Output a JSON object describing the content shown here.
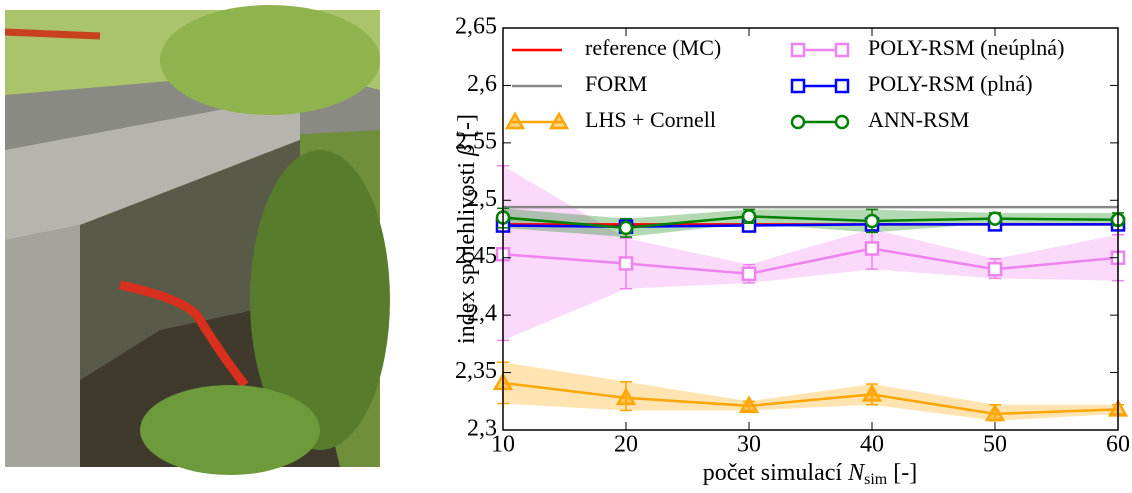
{
  "chart_data": {
    "type": "line",
    "x_label": {
      "text": "počet simulací ",
      "var": "N",
      "sub": "sim",
      "unit": " [-]"
    },
    "y_label": {
      "text": "index spolehlivosti ",
      "var": "β",
      "unit": " [-]"
    },
    "x": [
      10,
      20,
      30,
      40,
      50,
      60
    ],
    "xlim": [
      10,
      60
    ],
    "xticks": [
      10,
      20,
      30,
      40,
      50,
      60
    ],
    "ylim": [
      2.3,
      2.65
    ],
    "yticks": [
      {
        "value": 2.3,
        "label": "2,3"
      },
      {
        "value": 2.35,
        "label": "2,35"
      },
      {
        "value": 2.4,
        "label": "2,4"
      },
      {
        "value": 2.45,
        "label": "2,45"
      },
      {
        "value": 2.5,
        "label": "2,5"
      },
      {
        "value": 2.55,
        "label": "2,55"
      },
      {
        "value": 2.6,
        "label": "2,6"
      },
      {
        "value": 2.65,
        "label": "2,65"
      }
    ],
    "legend": {
      "loc": "upper",
      "ncol": 2
    },
    "series": [
      {
        "name": "reference (MC)",
        "color": "#ff0000",
        "values": [
          2.479,
          2.479,
          2.479,
          2.479,
          2.479,
          2.479
        ]
      },
      {
        "name": "FORM",
        "color": "#888888",
        "values": [
          2.494,
          2.494,
          2.494,
          2.494,
          2.494,
          2.494
        ]
      },
      {
        "name": "LHS + Cornell",
        "color": "#ffa500",
        "marker": "triangle",
        "values": [
          2.341,
          2.328,
          2.321,
          2.331,
          2.314,
          2.318
        ],
        "lower": [
          2.323,
          2.317,
          2.317,
          2.322,
          2.308,
          2.314
        ],
        "upper": [
          2.359,
          2.342,
          2.325,
          2.34,
          2.322,
          2.322
        ]
      },
      {
        "name": "POLY-RSM (neúplná)",
        "color": "#ee82ee",
        "marker": "square",
        "values": [
          2.453,
          2.445,
          2.436,
          2.458,
          2.44,
          2.45
        ],
        "lower": [
          2.378,
          2.423,
          2.428,
          2.44,
          2.432,
          2.43
        ],
        "upper": [
          2.53,
          2.467,
          2.444,
          2.475,
          2.449,
          2.47
        ]
      },
      {
        "name": "POLY-RSM (plná)",
        "color": "#0000ff",
        "marker": "square",
        "values": [
          2.478,
          2.477,
          2.478,
          2.479,
          2.479,
          2.479
        ]
      },
      {
        "name": "ANN-RSM",
        "color": "#008000",
        "marker": "circle",
        "values": [
          2.485,
          2.476,
          2.486,
          2.482,
          2.484,
          2.483
        ],
        "lower": [
          2.476,
          2.468,
          2.48,
          2.472,
          2.48,
          2.478
        ],
        "upper": [
          2.493,
          2.484,
          2.492,
          2.492,
          2.489,
          2.489
        ]
      }
    ]
  }
}
